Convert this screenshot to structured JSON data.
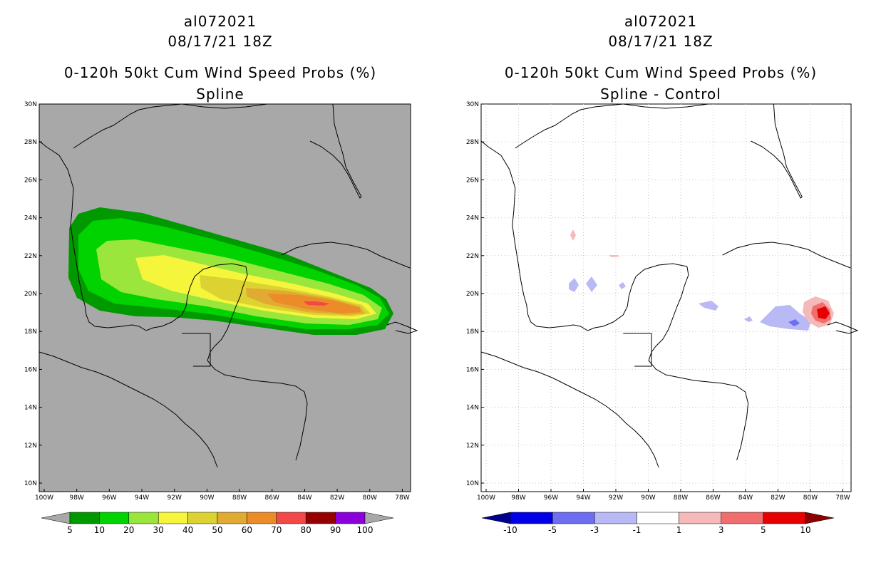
{
  "left": {
    "title1": "al072021",
    "title2": "08/17/21 18Z",
    "title3": "0-120h 50kt Cum Wind Speed Probs (%)",
    "title4": "Spline",
    "colorbar": {
      "labels": [
        "5",
        "10",
        "20",
        "30",
        "40",
        "50",
        "60",
        "70",
        "80",
        "90",
        "100"
      ],
      "colors": [
        "#a8a8a8",
        "#009a00",
        "#00d300",
        "#9ae63c",
        "#f5f53c",
        "#dcd232",
        "#e1aa32",
        "#ec8c28",
        "#f24848",
        "#960000",
        "#8c00dc",
        "#a8a8a8"
      ]
    }
  },
  "right": {
    "title1": "al072021",
    "title2": "08/17/21 18Z",
    "title3": "0-120h 50kt Cum Wind Speed Probs (%)",
    "title4": "Spline - Control",
    "colorbar": {
      "labels": [
        "-10",
        "-5",
        "-3",
        "-1",
        "1",
        "3",
        "5",
        "10"
      ],
      "colors": [
        "#00008c",
        "#0000e6",
        "#6e6ef0",
        "#b9b9f5",
        "#ffffff",
        "#f5b9b9",
        "#f06e6e",
        "#e60000",
        "#8c0000"
      ]
    }
  },
  "axes": {
    "lat_labels": [
      "30N",
      "28N",
      "26N",
      "24N",
      "22N",
      "20N",
      "18N",
      "16N",
      "14N",
      "12N",
      "10N"
    ],
    "lon_labels": [
      "100W",
      "98W",
      "96W",
      "94W",
      "92W",
      "90W",
      "88W",
      "86W",
      "84W",
      "82W",
      "80W",
      "78W"
    ]
  },
  "colors": {
    "background_left": "#a8a8a8",
    "background_right": "#ffffff",
    "coast": "#000000",
    "grid": "#c8c8c8"
  }
}
